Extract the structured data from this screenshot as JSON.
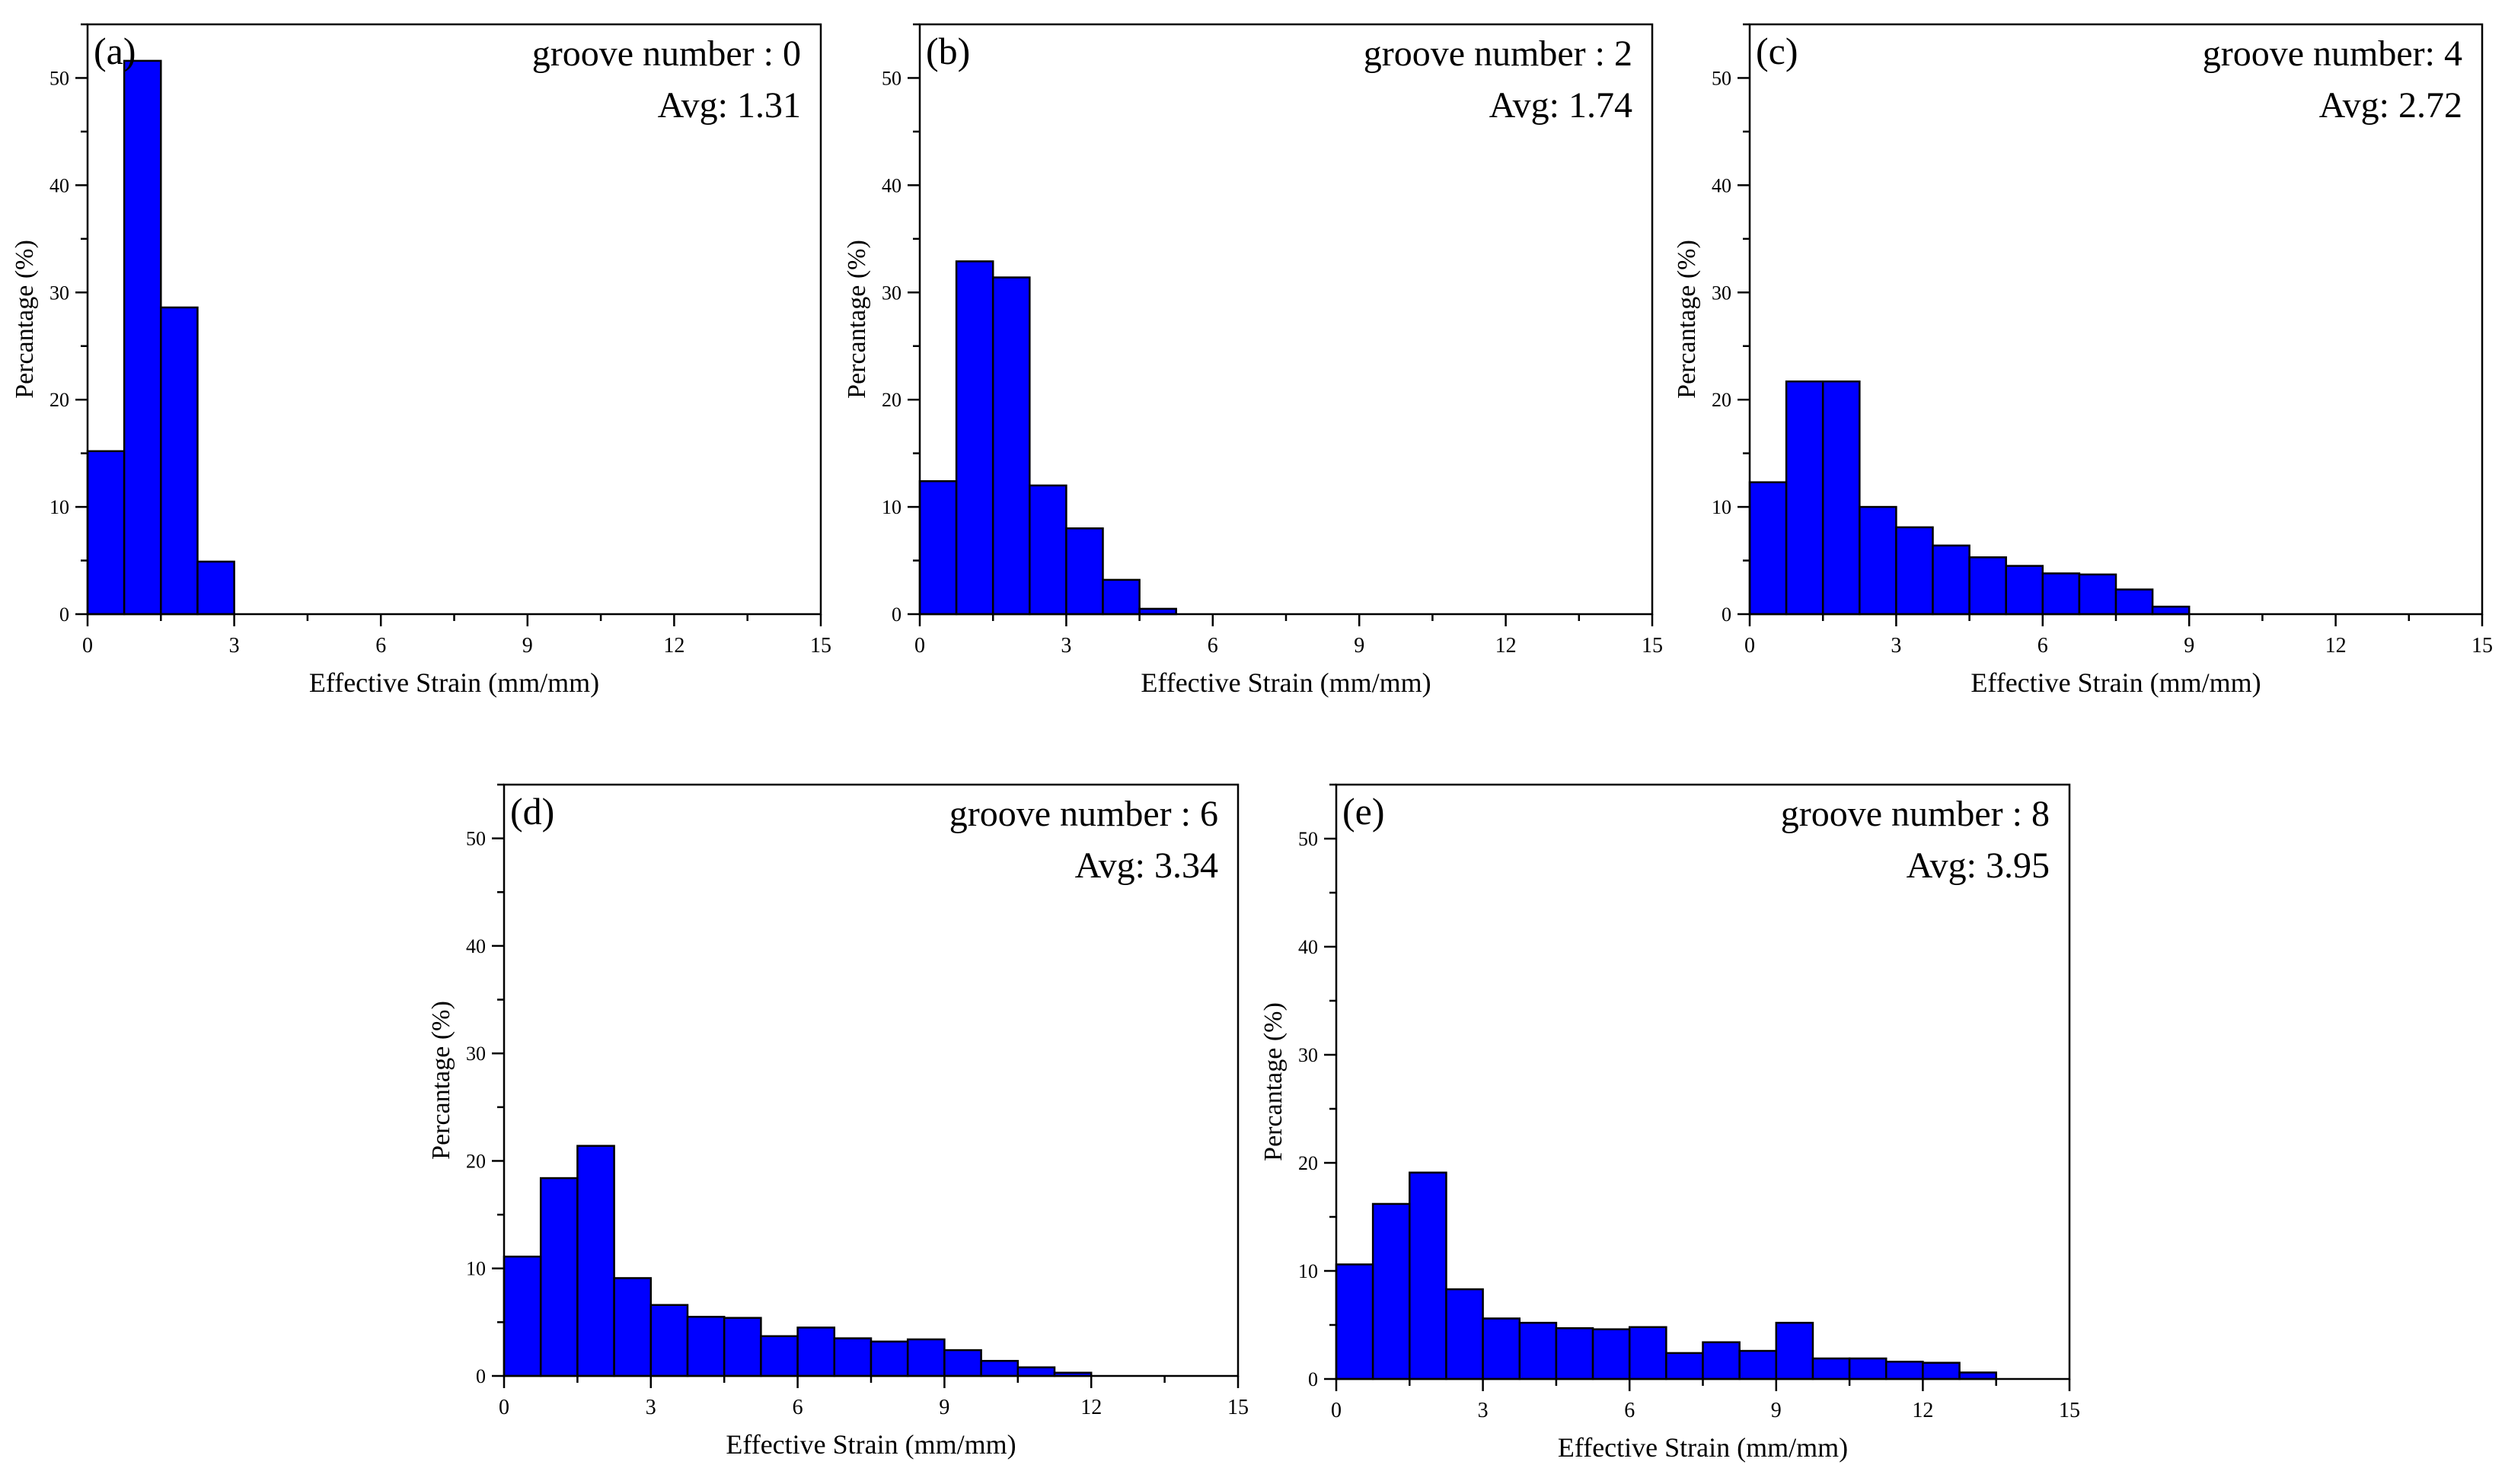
{
  "chart_data": [
    {
      "type": "bar",
      "panel_label": "(a)",
      "annotation_line1": "groove number : 0",
      "annotation_line2": "Avg: 1.31",
      "xlabel": "Effective Strain (mm/mm)",
      "ylabel": "Percantage (%)",
      "xlim": [
        0,
        15
      ],
      "ylim": [
        0,
        55
      ],
      "xticks": [
        "0",
        "3",
        "6",
        "9",
        "12",
        "15"
      ],
      "yticks": [
        "0",
        "10",
        "20",
        "30",
        "40",
        "50"
      ],
      "bin_width": 0.75,
      "values": [
        15.2,
        51.6,
        28.6,
        4.9
      ]
    },
    {
      "type": "bar",
      "panel_label": "(b)",
      "annotation_line1": "groove number : 2",
      "annotation_line2": "Avg: 1.74",
      "xlabel": "Effective Strain (mm/mm)",
      "ylabel": "Percantage (%)",
      "xlim": [
        0,
        15
      ],
      "ylim": [
        0,
        55
      ],
      "xticks": [
        "0",
        "3",
        "6",
        "9",
        "12",
        "15"
      ],
      "yticks": [
        "0",
        "10",
        "20",
        "30",
        "40",
        "50"
      ],
      "bin_width": 0.75,
      "values": [
        12.4,
        32.9,
        31.4,
        12.0,
        8.0,
        3.2,
        0.5
      ]
    },
    {
      "type": "bar",
      "panel_label": "(c)",
      "annotation_line1": "groove number: 4",
      "annotation_line2": "Avg: 2.72",
      "xlabel": "Effective Strain (mm/mm)",
      "ylabel": "Percantage (%)",
      "xlim": [
        0,
        15
      ],
      "ylim": [
        0,
        55
      ],
      "xticks": [
        "0",
        "3",
        "6",
        "9",
        "12",
        "15"
      ],
      "yticks": [
        "0",
        "10",
        "20",
        "30",
        "40",
        "50"
      ],
      "bin_width": 0.75,
      "values": [
        12.3,
        21.7,
        21.7,
        10.0,
        8.1,
        6.4,
        5.3,
        4.5,
        3.8,
        3.7,
        2.3,
        0.7
      ]
    },
    {
      "type": "bar",
      "panel_label": "(d)",
      "annotation_line1": "groove number : 6",
      "annotation_line2": "Avg: 3.34",
      "xlabel": "Effective Strain (mm/mm)",
      "ylabel": "Percantage (%)",
      "xlim": [
        0,
        15
      ],
      "ylim": [
        0,
        55
      ],
      "xticks": [
        "0",
        "3",
        "6",
        "9",
        "12",
        "15"
      ],
      "yticks": [
        "0",
        "10",
        "20",
        "30",
        "40",
        "50"
      ],
      "bin_width": 0.75,
      "values": [
        11.1,
        18.4,
        21.4,
        9.1,
        6.6,
        5.5,
        5.4,
        3.7,
        4.5,
        3.5,
        3.2,
        3.4,
        2.4,
        1.4,
        0.8,
        0.3
      ]
    },
    {
      "type": "bar",
      "panel_label": "(e)",
      "annotation_line1": "groove number : 8",
      "annotation_line2": "Avg: 3.95",
      "xlabel": "Effective Strain (mm/mm)",
      "ylabel": "Percantage (%)",
      "xlim": [
        0,
        15
      ],
      "ylim": [
        0,
        55
      ],
      "xticks": [
        "0",
        "3",
        "6",
        "9",
        "12",
        "15"
      ],
      "yticks": [
        "0",
        "10",
        "20",
        "30",
        "40",
        "50"
      ],
      "bin_width": 0.75,
      "values": [
        10.6,
        16.2,
        19.1,
        8.3,
        5.6,
        5.2,
        4.7,
        4.6,
        4.8,
        2.4,
        3.4,
        2.6,
        5.2,
        1.9,
        1.9,
        1.6,
        1.5,
        0.6
      ]
    }
  ],
  "colors": {
    "bar_fill": "#0000ff",
    "bar_stroke": "#000000",
    "axis": "#000000"
  }
}
